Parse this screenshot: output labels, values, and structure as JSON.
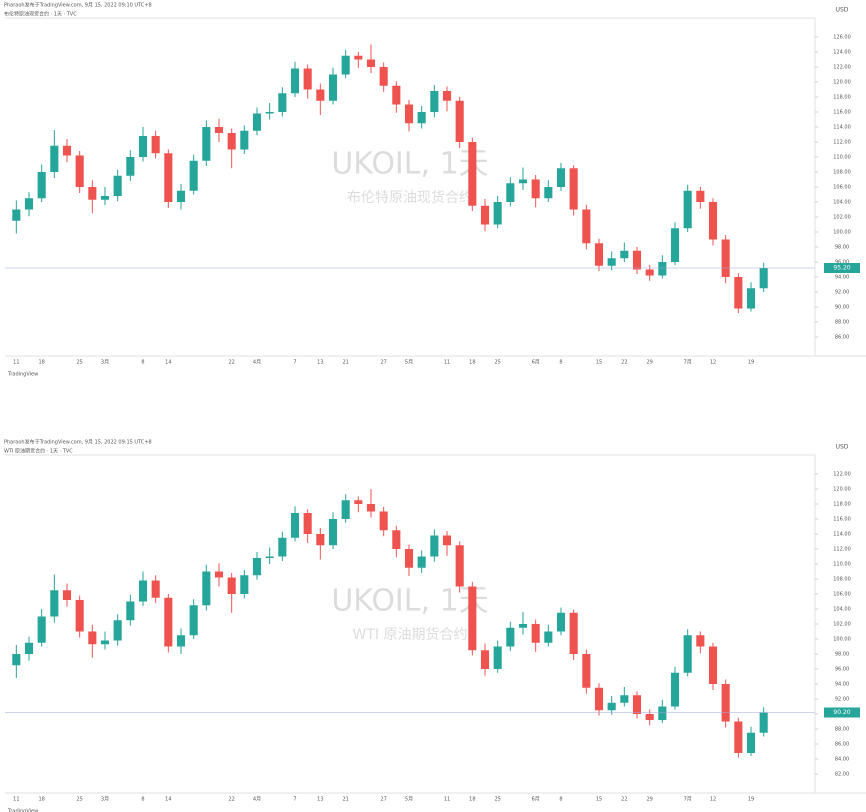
{
  "chart_data": [
    {
      "type": "candlestick",
      "author": "Pharaoh发布于TradingView.com, 9月 15, 2022 09:10 UTC+8",
      "title": "布伦特原油现货合约 · 1天 · TVC",
      "watermark": "UKOIL, 1天",
      "subtitle": "布伦特原油现货合约",
      "unit": "USD",
      "brand": "TradingView",
      "up_color": "#26a69a",
      "down_color": "#ef5350",
      "last_price_label": "95.20",
      "categories": [
        "11",
        null,
        "18",
        null,
        null,
        "25",
        null,
        "3月",
        null,
        null,
        "8",
        null,
        "14",
        null,
        null,
        null,
        null,
        "22",
        null,
        "4月",
        null,
        null,
        "7",
        null,
        "13",
        null,
        "21",
        null,
        null,
        "27",
        null,
        "5月",
        null,
        null,
        "11",
        null,
        "18",
        null,
        "25",
        null,
        null,
        "6月",
        null,
        "8",
        null,
        null,
        "15",
        null,
        "22",
        null,
        "29",
        null,
        null,
        "7月",
        null,
        "12",
        null,
        null,
        "19",
        null
      ],
      "candles": [
        [
          101.5,
          104.2,
          99.8,
          103.0
        ],
        [
          103.0,
          105.3,
          102.1,
          104.5
        ],
        [
          104.5,
          109.0,
          104.0,
          108.0
        ],
        [
          108.0,
          113.6,
          107.2,
          111.5
        ],
        [
          111.5,
          112.4,
          109.3,
          110.2
        ],
        [
          110.2,
          110.8,
          105.2,
          106.0
        ],
        [
          106.0,
          106.9,
          102.5,
          104.3
        ],
        [
          104.3,
          106.0,
          103.6,
          104.8
        ],
        [
          104.8,
          108.3,
          104.1,
          107.5
        ],
        [
          107.5,
          110.9,
          106.8,
          110.0
        ],
        [
          110.0,
          114.0,
          109.4,
          112.8
        ],
        [
          112.8,
          113.5,
          109.8,
          110.5
        ],
        [
          110.5,
          111.0,
          103.2,
          104.0
        ],
        [
          104.0,
          106.4,
          103.0,
          105.5
        ],
        [
          105.5,
          110.3,
          105.0,
          109.5
        ],
        [
          109.5,
          114.9,
          108.8,
          114.0
        ],
        [
          114.0,
          115.1,
          112.0,
          113.2
        ],
        [
          113.2,
          113.8,
          108.5,
          111.0
        ],
        [
          111.0,
          114.2,
          110.4,
          113.5
        ],
        [
          113.5,
          116.6,
          112.9,
          115.8
        ],
        [
          115.8,
          117.2,
          115.0,
          116.0
        ],
        [
          116.0,
          119.3,
          115.4,
          118.5
        ],
        [
          118.5,
          122.7,
          118.0,
          121.8
        ],
        [
          121.8,
          122.3,
          117.8,
          119.0
        ],
        [
          119.0,
          119.8,
          115.6,
          117.5
        ],
        [
          117.5,
          121.9,
          117.0,
          121.0
        ],
        [
          121.0,
          124.3,
          120.5,
          123.5
        ],
        [
          123.5,
          124.0,
          121.9,
          123.0
        ],
        [
          123.0,
          125.0,
          121.2,
          122.0
        ],
        [
          122.0,
          122.6,
          118.7,
          119.5
        ],
        [
          119.5,
          120.1,
          115.9,
          117.0
        ],
        [
          117.0,
          117.6,
          113.4,
          114.5
        ],
        [
          114.5,
          116.8,
          113.8,
          116.0
        ],
        [
          116.0,
          119.6,
          115.3,
          118.8
        ],
        [
          118.8,
          119.4,
          116.1,
          117.5
        ],
        [
          117.5,
          118.0,
          111.2,
          112.0
        ],
        [
          112.0,
          112.6,
          102.8,
          103.5
        ],
        [
          103.5,
          104.4,
          100.1,
          101.0
        ],
        [
          101.0,
          104.8,
          100.5,
          104.0
        ],
        [
          104.0,
          107.3,
          103.4,
          106.5
        ],
        [
          106.5,
          108.6,
          105.6,
          107.0
        ],
        [
          107.0,
          107.6,
          103.3,
          104.5
        ],
        [
          104.5,
          106.9,
          104.0,
          106.0
        ],
        [
          106.0,
          109.2,
          105.5,
          108.5
        ],
        [
          108.5,
          108.9,
          102.2,
          103.0
        ],
        [
          103.0,
          103.6,
          97.7,
          98.5
        ],
        [
          98.5,
          99.1,
          94.8,
          95.5
        ],
        [
          95.5,
          97.4,
          94.9,
          96.5
        ],
        [
          96.5,
          98.6,
          96.0,
          97.5
        ],
        [
          97.5,
          98.0,
          94.4,
          95.0
        ],
        [
          95.0,
          95.6,
          93.5,
          94.2
        ],
        [
          94.2,
          96.9,
          93.8,
          96.0
        ],
        [
          96.0,
          101.3,
          95.6,
          100.5
        ],
        [
          100.5,
          106.3,
          100.0,
          105.5
        ],
        [
          105.5,
          106.0,
          103.1,
          104.0
        ],
        [
          104.0,
          104.5,
          98.2,
          99.0
        ],
        [
          99.0,
          99.6,
          93.2,
          94.0
        ],
        [
          94.0,
          94.5,
          89.2,
          89.8
        ],
        [
          89.8,
          93.3,
          89.4,
          92.5
        ],
        [
          92.5,
          95.9,
          92.0,
          95.2
        ]
      ],
      "ylim": [
        84,
        128
      ],
      "yticks": [
        {
          "value": 86,
          "label": "86.00"
        },
        {
          "value": 88,
          "label": "88.00"
        },
        {
          "value": 90,
          "label": "90.00"
        },
        {
          "value": 92,
          "label": "92.00"
        },
        {
          "value": 94,
          "label": "94.00"
        },
        {
          "value": 96,
          "label": "96.00"
        },
        {
          "value": 98,
          "label": "98.00"
        },
        {
          "value": 100,
          "label": "100.00"
        },
        {
          "value": 102,
          "label": "102.00"
        },
        {
          "value": 104,
          "label": "104.00"
        },
        {
          "value": 106,
          "label": "106.00"
        },
        {
          "value": 108,
          "label": "108.00"
        },
        {
          "value": 110,
          "label": "110.00"
        },
        {
          "value": 112,
          "label": "112.00"
        },
        {
          "value": 114,
          "label": "114.00"
        },
        {
          "value": 116,
          "label": "116.00"
        },
        {
          "value": 118,
          "label": "118.00"
        },
        {
          "value": 120,
          "label": "120.00"
        },
        {
          "value": 122,
          "label": "122.00"
        },
        {
          "value": 124,
          "label": "124.00"
        },
        {
          "value": 126,
          "label": "126.00"
        }
      ]
    },
    {
      "type": "candlestick",
      "author": "Pharaoh发布于TradingView.com, 9月 15, 2022 09:15 UTC+8",
      "title": "WTI 原油期货合约 · 1天 · TVC",
      "watermark": "UKOIL, 1天",
      "subtitle": "WTI 原油期货合约",
      "unit": "USD",
      "brand": "TradingView",
      "up_color": "#26a69a",
      "down_color": "#ef5350",
      "last_price_label": "90.20",
      "categories": [
        "11",
        null,
        "18",
        null,
        null,
        "25",
        null,
        "3月",
        null,
        null,
        "8",
        null,
        "14",
        null,
        null,
        null,
        null,
        "22",
        null,
        "4月",
        null,
        null,
        "7",
        null,
        "13",
        null,
        "21",
        null,
        null,
        "27",
        null,
        "5月",
        null,
        null,
        "11",
        null,
        "18",
        null,
        "25",
        null,
        null,
        "6月",
        null,
        "8",
        null,
        null,
        "15",
        null,
        "22",
        null,
        "29",
        null,
        null,
        "7月",
        null,
        "12",
        null,
        null,
        "19",
        null
      ],
      "candles": [
        [
          96.5,
          99.2,
          94.8,
          98.0
        ],
        [
          98.0,
          100.3,
          97.1,
          99.5
        ],
        [
          99.5,
          104.0,
          99.0,
          103.0
        ],
        [
          103.0,
          108.6,
          102.2,
          106.5
        ],
        [
          106.5,
          107.4,
          104.3,
          105.2
        ],
        [
          105.2,
          105.8,
          100.2,
          101.0
        ],
        [
          101.0,
          101.9,
          97.5,
          99.3
        ],
        [
          99.3,
          101.0,
          98.6,
          99.8
        ],
        [
          99.8,
          103.3,
          99.1,
          102.5
        ],
        [
          102.5,
          105.9,
          101.8,
          105.0
        ],
        [
          105.0,
          109.0,
          104.4,
          107.8
        ],
        [
          107.8,
          108.5,
          104.8,
          105.5
        ],
        [
          105.5,
          106.0,
          98.2,
          99.0
        ],
        [
          99.0,
          101.4,
          98.0,
          100.5
        ],
        [
          100.5,
          105.3,
          100.0,
          104.5
        ],
        [
          104.5,
          109.9,
          103.8,
          109.0
        ],
        [
          109.0,
          110.1,
          107.0,
          108.2
        ],
        [
          108.2,
          108.8,
          103.5,
          106.0
        ],
        [
          106.0,
          109.2,
          105.4,
          108.5
        ],
        [
          108.5,
          111.6,
          107.9,
          110.8
        ],
        [
          110.8,
          112.2,
          110.0,
          111.0
        ],
        [
          111.0,
          114.3,
          110.4,
          113.5
        ],
        [
          113.5,
          117.7,
          113.0,
          116.8
        ],
        [
          116.8,
          117.3,
          112.8,
          114.0
        ],
        [
          114.0,
          114.8,
          110.6,
          112.5
        ],
        [
          112.5,
          116.9,
          112.0,
          116.0
        ],
        [
          116.0,
          119.3,
          115.5,
          118.5
        ],
        [
          118.5,
          119.0,
          116.9,
          118.0
        ],
        [
          118.0,
          120.0,
          116.2,
          117.0
        ],
        [
          117.0,
          117.6,
          113.7,
          114.5
        ],
        [
          114.5,
          115.1,
          110.9,
          112.0
        ],
        [
          112.0,
          112.6,
          108.4,
          109.5
        ],
        [
          109.5,
          111.8,
          108.8,
          111.0
        ],
        [
          111.0,
          114.6,
          110.3,
          113.8
        ],
        [
          113.8,
          114.4,
          111.1,
          112.5
        ],
        [
          112.5,
          113.0,
          106.2,
          107.0
        ],
        [
          107.0,
          107.6,
          97.8,
          98.5
        ],
        [
          98.5,
          99.4,
          95.1,
          96.0
        ],
        [
          96.0,
          99.8,
          95.5,
          99.0
        ],
        [
          99.0,
          102.3,
          98.4,
          101.5
        ],
        [
          101.5,
          103.6,
          100.6,
          102.0
        ],
        [
          102.0,
          102.6,
          98.3,
          99.5
        ],
        [
          99.5,
          101.9,
          99.0,
          101.0
        ],
        [
          101.0,
          104.2,
          100.5,
          103.5
        ],
        [
          103.5,
          103.9,
          97.2,
          98.0
        ],
        [
          98.0,
          98.6,
          92.7,
          93.5
        ],
        [
          93.5,
          94.1,
          89.8,
          90.5
        ],
        [
          90.5,
          92.4,
          89.9,
          91.5
        ],
        [
          91.5,
          93.6,
          91.0,
          92.5
        ],
        [
          92.5,
          93.0,
          89.4,
          90.0
        ],
        [
          90.0,
          90.6,
          88.5,
          89.2
        ],
        [
          89.2,
          91.9,
          88.8,
          91.0
        ],
        [
          91.0,
          96.3,
          90.6,
          95.5
        ],
        [
          95.5,
          101.3,
          95.0,
          100.5
        ],
        [
          100.5,
          101.0,
          98.1,
          99.0
        ],
        [
          99.0,
          99.5,
          93.2,
          94.0
        ],
        [
          94.0,
          94.6,
          88.2,
          89.0
        ],
        [
          89.0,
          89.5,
          84.2,
          84.8
        ],
        [
          84.8,
          88.3,
          84.4,
          87.5
        ],
        [
          87.5,
          90.9,
          87.0,
          90.2
        ]
      ],
      "ylim": [
        80,
        124
      ],
      "yticks": [
        {
          "value": 82,
          "label": "82.00"
        },
        {
          "value": 84,
          "label": "84.00"
        },
        {
          "value": 86,
          "label": "86.00"
        },
        {
          "value": 88,
          "label": "88.00"
        },
        {
          "value": 90,
          "label": "90.00"
        },
        {
          "value": 92,
          "label": "92.00"
        },
        {
          "value": 94,
          "label": "94.00"
        },
        {
          "value": 96,
          "label": "96.00"
        },
        {
          "value": 98,
          "label": "98.00"
        },
        {
          "value": 100,
          "label": "100.00"
        },
        {
          "value": 102,
          "label": "102.00"
        },
        {
          "value": 104,
          "label": "104.00"
        },
        {
          "value": 106,
          "label": "106.00"
        },
        {
          "value": 108,
          "label": "108.00"
        },
        {
          "value": 110,
          "label": "110.00"
        },
        {
          "value": 112,
          "label": "112.00"
        },
        {
          "value": 114,
          "label": "114.00"
        },
        {
          "value": 116,
          "label": "116.00"
        },
        {
          "value": 118,
          "label": "118.00"
        },
        {
          "value": 120,
          "label": "120.00"
        },
        {
          "value": 122,
          "label": "122.00"
        }
      ]
    }
  ]
}
